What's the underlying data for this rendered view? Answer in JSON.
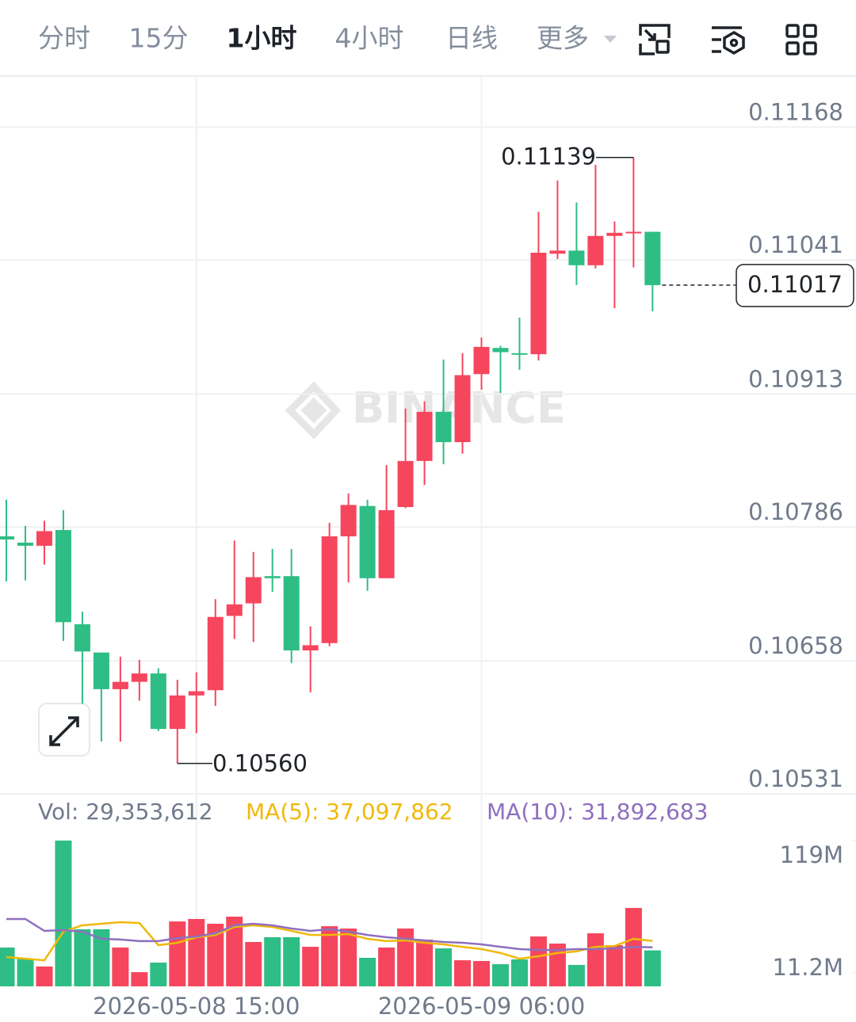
{
  "tabs": {
    "items": [
      "分时",
      "15分",
      "1小时",
      "4小时",
      "日线",
      "更多"
    ],
    "active": 2
  },
  "watermark": "BINANCE",
  "chart_data": [
    {
      "type": "candlestick",
      "open": [
        0.10777,
        0.10771,
        0.10768,
        0.10783,
        0.10693,
        0.10666,
        0.10631,
        0.10638,
        0.10646,
        0.10593,
        0.10625,
        0.1063,
        0.10701,
        0.10713,
        0.10739,
        0.10739,
        0.10668,
        0.10675,
        0.10777,
        0.10806,
        0.10737,
        0.10805,
        0.10849,
        0.10896,
        0.10867,
        0.10932,
        0.10957,
        0.10952,
        0.10951,
        0.11047,
        0.1105,
        0.11036,
        0.11064,
        0.11067,
        0.11068
      ],
      "high": [
        0.10812,
        0.10787,
        0.10792,
        0.10802,
        0.10705,
        0.10666,
        0.10662,
        0.10659,
        0.10651,
        0.1064,
        0.10647,
        0.10717,
        0.10773,
        0.10762,
        0.10765,
        0.10765,
        0.10691,
        0.1079,
        0.10818,
        0.10812,
        0.10845,
        0.10899,
        0.10906,
        0.10946,
        0.10952,
        0.10967,
        0.10959,
        0.10986,
        0.11087,
        0.11117,
        0.11096,
        0.11132,
        0.11078,
        0.11139,
        0.11068
      ],
      "low": [
        0.10734,
        0.10735,
        0.1075,
        0.10677,
        0.10617,
        0.10581,
        0.10581,
        0.1062,
        0.10591,
        0.1056,
        0.10589,
        0.10615,
        0.10679,
        0.10676,
        0.10724,
        0.10656,
        0.10628,
        0.10672,
        0.10733,
        0.10725,
        0.10737,
        0.10804,
        0.10826,
        0.10846,
        0.10856,
        0.10917,
        0.10914,
        0.10936,
        0.10945,
        0.11042,
        0.11017,
        0.11033,
        0.10995,
        0.11034,
        0.10992
      ],
      "close": [
        0.10774,
        0.10768,
        0.10782,
        0.10695,
        0.10667,
        0.10631,
        0.10638,
        0.10646,
        0.10593,
        0.10625,
        0.10629,
        0.107,
        0.10712,
        0.10738,
        0.10737,
        0.10668,
        0.10673,
        0.10777,
        0.10807,
        0.10737,
        0.10802,
        0.10849,
        0.10896,
        0.10867,
        0.10931,
        0.10958,
        0.10953,
        0.10951,
        0.11048,
        0.1105,
        0.11036,
        0.11064,
        0.11067,
        0.11068,
        0.11017
      ],
      "up_color": "#f6465d",
      "down_color": "#2ebd85",
      "ylim": [
        0.10531,
        0.11216
      ],
      "yticks": [
        0.11168,
        0.11041,
        0.10913,
        0.10786,
        0.10658,
        0.10531
      ],
      "grid": true,
      "high_annotation": 0.11139,
      "low_annotation": {
        "value": 0.1056,
        "label": "0.10560"
      },
      "last_price": 0.11017
    },
    {
      "type": "bar",
      "categories": [
        null,
        null,
        null,
        null,
        null,
        null,
        null,
        null,
        null,
        null,
        "2026-05-08 15:00",
        null,
        null,
        null,
        null,
        null,
        null,
        null,
        null,
        null,
        null,
        null,
        null,
        null,
        null,
        "2026-05-09 06:00",
        null,
        null,
        null,
        null,
        null,
        null,
        null,
        null,
        null
      ],
      "series": [
        {
          "name": "Vol: 29,353,612",
          "color": "#707a8a",
          "values": [
            31700000,
            22600000,
            16200000,
            119000000,
            46600000,
            46600000,
            31700000,
            11600000,
            19400000,
            53000000,
            55000000,
            51100000,
            56900000,
            36200000,
            40100000,
            40100000,
            32300000,
            49100000,
            47200000,
            23300000,
            31700000,
            47200000,
            38200000,
            31000000,
            21300000,
            20700000,
            18100000,
            22000000,
            40700000,
            34900000,
            17500000,
            43300000,
            33600000,
            64000000,
            29353612
          ]
        },
        {
          "name": "MA(5): 37,097,862",
          "color": "#f0b90b",
          "type": "line",
          "values": [
            23900000,
            22600000,
            21300000,
            44600000,
            49800000,
            51100000,
            52400000,
            51700000,
            33600000,
            35600000,
            40100000,
            42000000,
            48500000,
            49800000,
            48500000,
            45300000,
            42000000,
            42000000,
            42700000,
            38800000,
            36900000,
            37500000,
            35600000,
            34300000,
            32300000,
            30400000,
            27200000,
            22600000,
            24600000,
            27200000,
            28500000,
            32300000,
            33000000,
            38800000,
            37097862
          ]
        },
        {
          "name": "MA(10): 31,892,683",
          "color": "#8e6fbf",
          "type": "line",
          "values": [
            55000000,
            55000000,
            45300000,
            45900000,
            44600000,
            38800000,
            38200000,
            36900000,
            36900000,
            39400000,
            40700000,
            43300000,
            49800000,
            51100000,
            49800000,
            47200000,
            45300000,
            46600000,
            44600000,
            42000000,
            40100000,
            38800000,
            37500000,
            36200000,
            35600000,
            34300000,
            32300000,
            30400000,
            29700000,
            29700000,
            30400000,
            30400000,
            31000000,
            32300000,
            31892683
          ]
        }
      ],
      "ylim": [
        0,
        119000000
      ],
      "yticks": [
        {
          "value": 119000000,
          "label": "119M"
        },
        {
          "value": 11200000,
          "label": "11.2M"
        }
      ]
    }
  ]
}
